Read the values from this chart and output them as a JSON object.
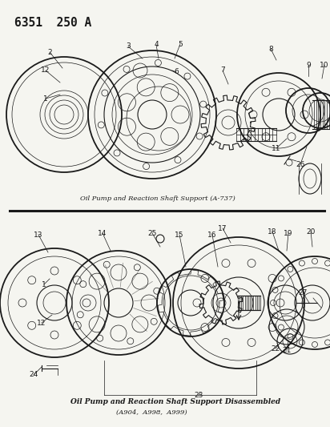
{
  "title": "6351  250 A",
  "bg_color": "#f5f5f0",
  "line_color": "#1a1a1a",
  "caption1": "Oil Pump and Reaction Shaft Support (A-737)",
  "caption2": "Oil Pump and Reaction Shaft Support Disassembled",
  "caption3": "(A904,  A998,  A999)"
}
